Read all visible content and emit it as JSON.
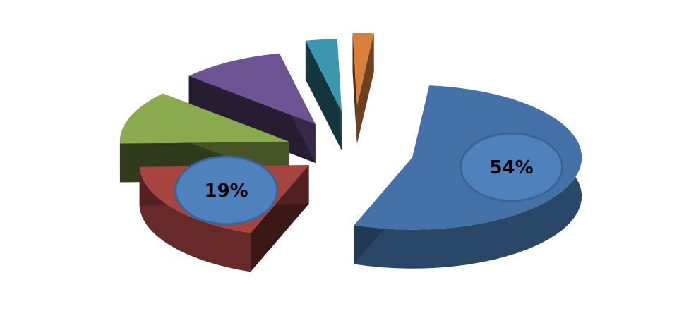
{
  "chart_data": {
    "type": "pie",
    "title": "",
    "three_d": true,
    "exploded": true,
    "legend": "none",
    "slices": [
      {
        "value": 54,
        "label": "54%",
        "color": "#4472A8"
      },
      {
        "value": 19,
        "label": "19%",
        "color": "#A64440"
      },
      {
        "value": 12,
        "label": "",
        "color": "#8AAA4E"
      },
      {
        "value": 10,
        "label": "",
        "color": "#6E5492"
      },
      {
        "value": 3,
        "label": "",
        "color": "#3C97AE"
      },
      {
        "value": 2,
        "label": "",
        "color": "#D97F3C"
      }
    ]
  }
}
